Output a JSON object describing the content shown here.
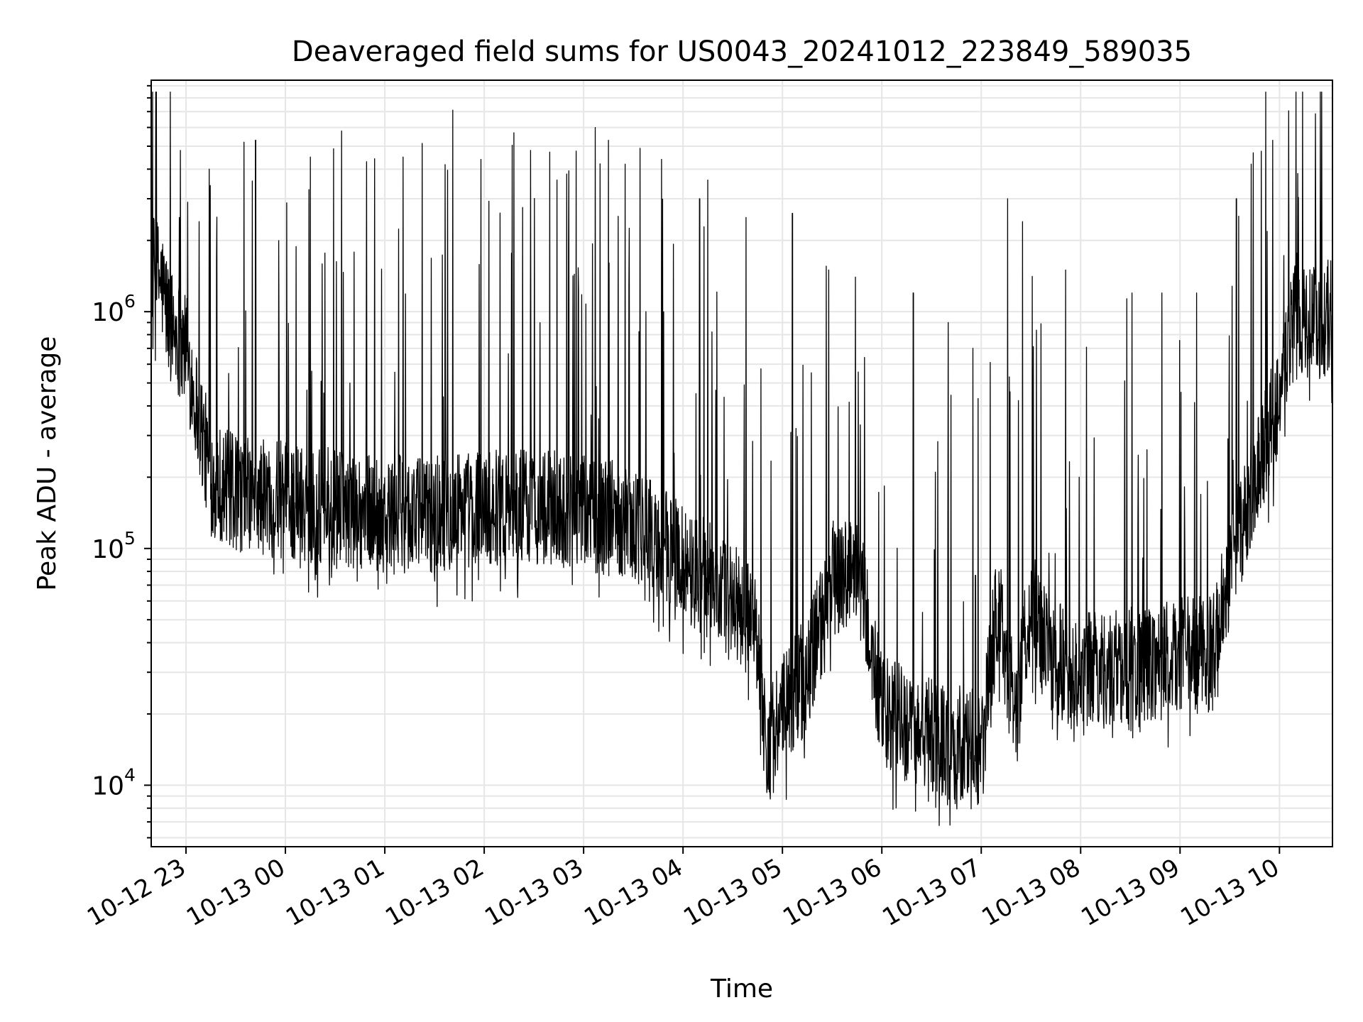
{
  "chart_data": {
    "type": "line",
    "title": "Deaveraged field sums for US0043_20241012_223849_589035",
    "xlabel": "Time",
    "ylabel": "Peak ADU - average",
    "y_scale": "log",
    "ylim": [
      5500,
      9500000
    ],
    "xlim": [
      "2024-10-12 22:39",
      "2024-10-13 10:32"
    ],
    "x_ticks": [
      "2024-10-12 23:00",
      "2024-10-13 00:00",
      "2024-10-13 01:00",
      "2024-10-13 02:00",
      "2024-10-13 03:00",
      "2024-10-13 04:00",
      "2024-10-13 05:00",
      "2024-10-13 06:00",
      "2024-10-13 07:00",
      "2024-10-13 08:00",
      "2024-10-13 09:00",
      "2024-10-13 10:00"
    ],
    "x_tick_labels": [
      "10-12 23",
      "10-13 00",
      "10-13 01",
      "10-13 02",
      "10-13 03",
      "10-13 04",
      "10-13 05",
      "10-13 06",
      "10-13 07",
      "10-13 08",
      "10-13 09",
      "10-13 10"
    ],
    "y_ticks": [
      10000,
      100000,
      1000000
    ],
    "y_tick_labels": [
      "10",
      "10",
      "10"
    ],
    "y_tick_exponents": [
      "4",
      "5",
      "6"
    ],
    "grid": true,
    "line_color": "#000000",
    "grid_color": "#e6e6e6",
    "series": [
      {
        "baseline": {
          "x": [
            "2024-10-12 22:39",
            "2024-10-12 22:45",
            "2024-10-12 22:50",
            "2024-10-12 22:55",
            "2024-10-12 23:00",
            "2024-10-12 23:05",
            "2024-10-12 23:10",
            "2024-10-12 23:15",
            "2024-10-12 23:30",
            "2024-10-13 00:00",
            "2024-10-13 00:30",
            "2024-10-13 01:00",
            "2024-10-13 01:30",
            "2024-10-13 02:00",
            "2024-10-13 02:30",
            "2024-10-13 03:00",
            "2024-10-13 03:30",
            "2024-10-13 04:00",
            "2024-10-13 04:30",
            "2024-10-13 04:45",
            "2024-10-13 04:50",
            "2024-10-13 05:00",
            "2024-10-13 05:15",
            "2024-10-13 05:30",
            "2024-10-13 05:45",
            "2024-10-13 06:00",
            "2024-10-13 06:30",
            "2024-10-13 07:00",
            "2024-10-13 07:10",
            "2024-10-13 07:20",
            "2024-10-13 07:30",
            "2024-10-13 07:40",
            "2024-10-13 08:00",
            "2024-10-13 08:30",
            "2024-10-13 09:00",
            "2024-10-13 09:20",
            "2024-10-13 09:30",
            "2024-10-13 09:45",
            "2024-10-13 10:00",
            "2024-10-13 10:10",
            "2024-10-13 10:20",
            "2024-10-13 10:32"
          ],
          "y": [
            1500000,
            1350000,
            900000,
            800000,
            700000,
            450000,
            300000,
            200000,
            170000,
            160000,
            150000,
            140000,
            140000,
            150000,
            150000,
            140000,
            130000,
            90000,
            60000,
            45000,
            14000,
            20000,
            30000,
            75000,
            85000,
            20000,
            16000,
            14000,
            60000,
            20000,
            60000,
            35000,
            30000,
            32000,
            35000,
            36000,
            80000,
            200000,
            450000,
            1000000,
            900000,
            950000
          ]
        },
        "spike_peaks": {
          "x": [
            "2024-10-12 22:56",
            "2024-10-12 23:01",
            "2024-10-12 23:08",
            "2024-10-12 23:14",
            "2024-10-12 23:35",
            "2024-10-12 23:42",
            "2024-10-13 00:15",
            "2024-10-13 00:49",
            "2024-10-13 01:11",
            "2024-10-13 01:41",
            "2024-10-13 01:58",
            "2024-10-13 02:18",
            "2024-10-13 02:28",
            "2024-10-13 02:44",
            "2024-10-13 03:07",
            "2024-10-13 03:15",
            "2024-10-13 03:25",
            "2024-10-13 03:34",
            "2024-10-13 03:47",
            "2024-10-13 04:10",
            "2024-10-13 04:15",
            "2024-10-13 04:38",
            "2024-10-13 05:06",
            "2024-10-13 05:28",
            "2024-10-13 05:44",
            "2024-10-13 06:19",
            "2024-10-13 06:40",
            "2024-10-13 06:55",
            "2024-10-13 07:16",
            "2024-10-13 07:25",
            "2024-10-13 07:51",
            "2024-10-13 08:31",
            "2024-10-13 08:49",
            "2024-10-13 09:10",
            "2024-10-13 09:34",
            "2024-10-13 09:43",
            "2024-10-13 09:56",
            "2024-10-13 10:22"
          ],
          "y": [
            2500000,
            2900000,
            2400000,
            4000000,
            5200000,
            5300000,
            4500000,
            4300000,
            4500000,
            7100000,
            4400000,
            5700000,
            4800000,
            3600000,
            6000000,
            5300000,
            4200000,
            4900000,
            4400000,
            3000000,
            3600000,
            2500000,
            2600000,
            1500000,
            1400000,
            1200000,
            900000,
            700000,
            3000000,
            2400000,
            1500000,
            1200000,
            1200000,
            1200000,
            3000000,
            4200000,
            5300000,
            2100000
          ]
        }
      }
    ]
  }
}
